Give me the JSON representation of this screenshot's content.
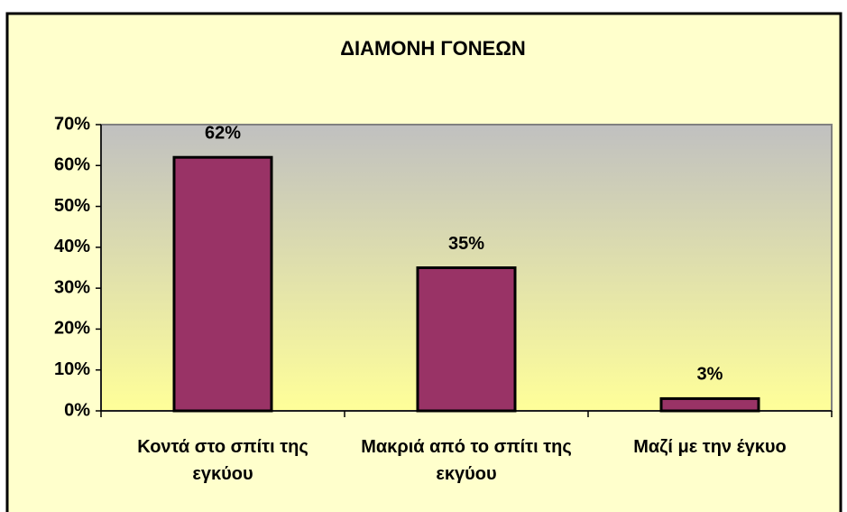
{
  "chart_data": {
    "type": "bar",
    "title": "ΔΙΑΜΟΝΗ ΓΟΝΕΩΝ",
    "categories": [
      "Κοντά στο σπίτι της εγκύου",
      "Μακριά από το σπίτι της εκγύου",
      "Μαζί με την έγκυο"
    ],
    "values": [
      62,
      35,
      3
    ],
    "value_labels": [
      "62%",
      "35%",
      "3%"
    ],
    "color": "#993366",
    "ylim": [
      0,
      70
    ],
    "yticks": [
      {
        "value": 0,
        "label": "0%"
      },
      {
        "value": 10,
        "label": "10%"
      },
      {
        "value": 20,
        "label": "20%"
      },
      {
        "value": 30,
        "label": "30%"
      },
      {
        "value": 40,
        "label": "40%"
      },
      {
        "value": 50,
        "label": "50%"
      },
      {
        "value": 60,
        "label": "60%"
      },
      {
        "value": 70,
        "label": "70%"
      }
    ],
    "grid": false
  }
}
